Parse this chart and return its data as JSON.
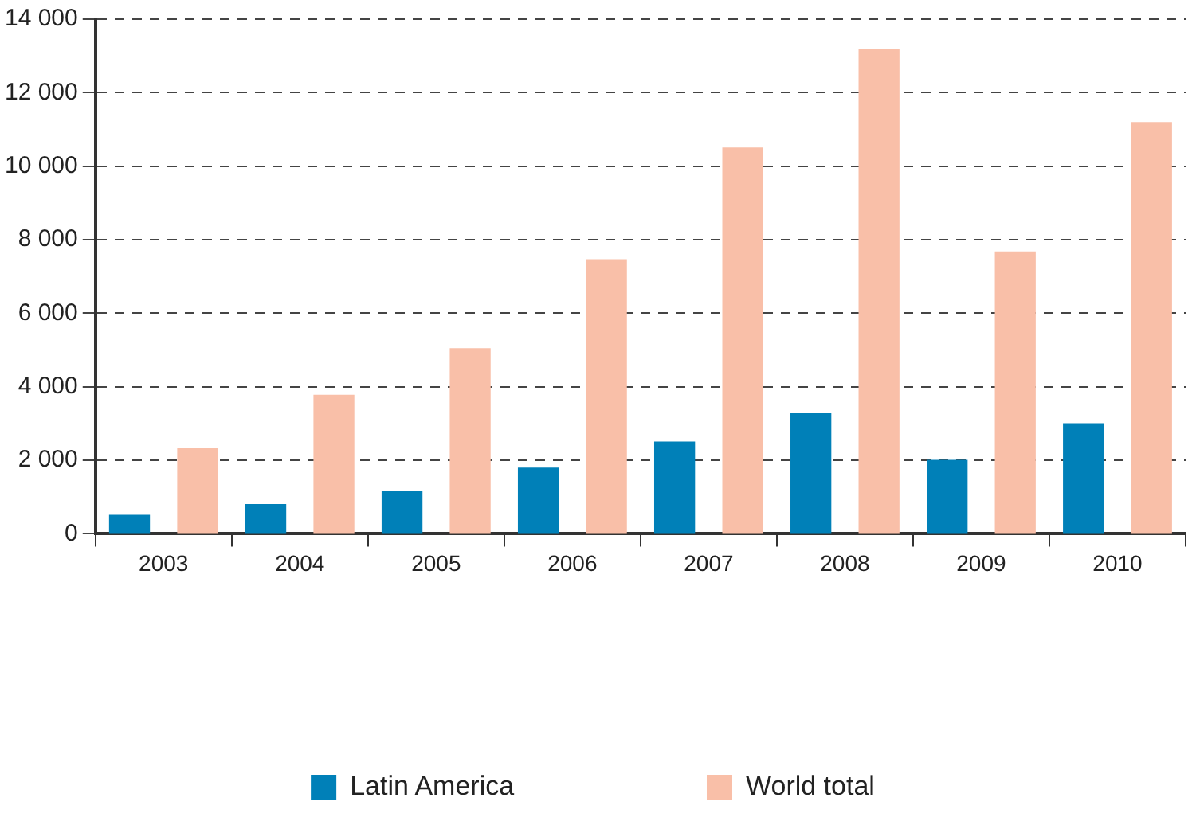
{
  "chart_data": {
    "type": "bar",
    "categories": [
      "2003",
      "2004",
      "2005",
      "2006",
      "2007",
      "2008",
      "2009",
      "2010"
    ],
    "series": [
      {
        "name": "Latin America",
        "color": "#0080b8",
        "values": [
          520,
          810,
          1160,
          1800,
          2510,
          3280,
          2010,
          3010
        ]
      },
      {
        "name": "World total",
        "color": "#f9bfa8",
        "values": [
          2350,
          3780,
          5050,
          7470,
          10510,
          13190,
          7680,
          11200
        ]
      }
    ],
    "ylim": [
      0,
      14000
    ],
    "yticks": [
      0,
      {
        "value": 2000,
        "label": "2 000"
      },
      {
        "value": 4000,
        "label": "4 000"
      },
      {
        "value": 6000,
        "label": "6 000"
      },
      {
        "value": 8000,
        "label": "8 000"
      },
      {
        "value": 10000,
        "label": "10 000"
      },
      {
        "value": 12000,
        "label": "12 000"
      },
      {
        "value": 14000,
        "label": "14 000"
      }
    ],
    "grid": "y",
    "legend": "bottom"
  }
}
